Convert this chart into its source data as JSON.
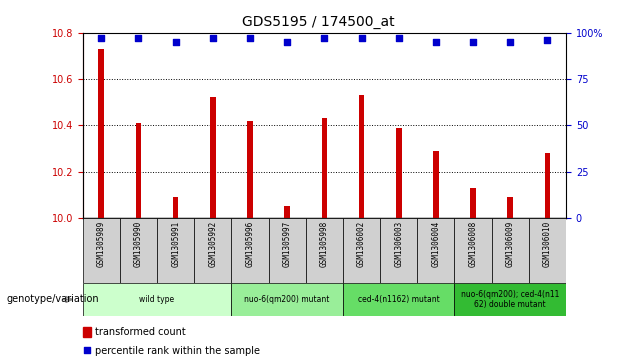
{
  "title": "GDS5195 / 174500_at",
  "samples": [
    "GSM1305989",
    "GSM1305990",
    "GSM1305991",
    "GSM1305992",
    "GSM1305996",
    "GSM1305997",
    "GSM1305998",
    "GSM1306002",
    "GSM1306003",
    "GSM1306004",
    "GSM1306008",
    "GSM1306009",
    "GSM1306010"
  ],
  "transformed_count": [
    10.73,
    10.41,
    10.09,
    10.52,
    10.42,
    10.05,
    10.43,
    10.53,
    10.39,
    10.29,
    10.13,
    10.09,
    10.28
  ],
  "percentile": [
    97,
    97,
    95,
    97,
    97,
    95,
    97,
    97,
    97,
    95,
    95,
    95,
    96
  ],
  "ylim_left": [
    10.0,
    10.8
  ],
  "ylim_right": [
    0,
    100
  ],
  "yticks_left": [
    10.0,
    10.2,
    10.4,
    10.6,
    10.8
  ],
  "yticks_right": [
    0,
    25,
    50,
    75,
    100
  ],
  "groups": [
    {
      "label": "wild type",
      "start": 0,
      "end": 3,
      "color": "#ccffcc"
    },
    {
      "label": "nuo-6(qm200) mutant",
      "start": 4,
      "end": 6,
      "color": "#99ee99"
    },
    {
      "label": "ced-4(n1162) mutant",
      "start": 7,
      "end": 9,
      "color": "#66dd66"
    },
    {
      "label": "nuo-6(qm200); ced-4(n11\n62) double mutant",
      "start": 10,
      "end": 12,
      "color": "#33bb33"
    }
  ],
  "bar_color": "#cc0000",
  "marker_color": "#0000cc",
  "grid_color": "#000000",
  "sample_box_color": "#d0d0d0",
  "genotype_label": "genotype/variation",
  "legend_transformed": "transformed count",
  "legend_percentile": "percentile rank within the sample",
  "bar_width": 0.15
}
